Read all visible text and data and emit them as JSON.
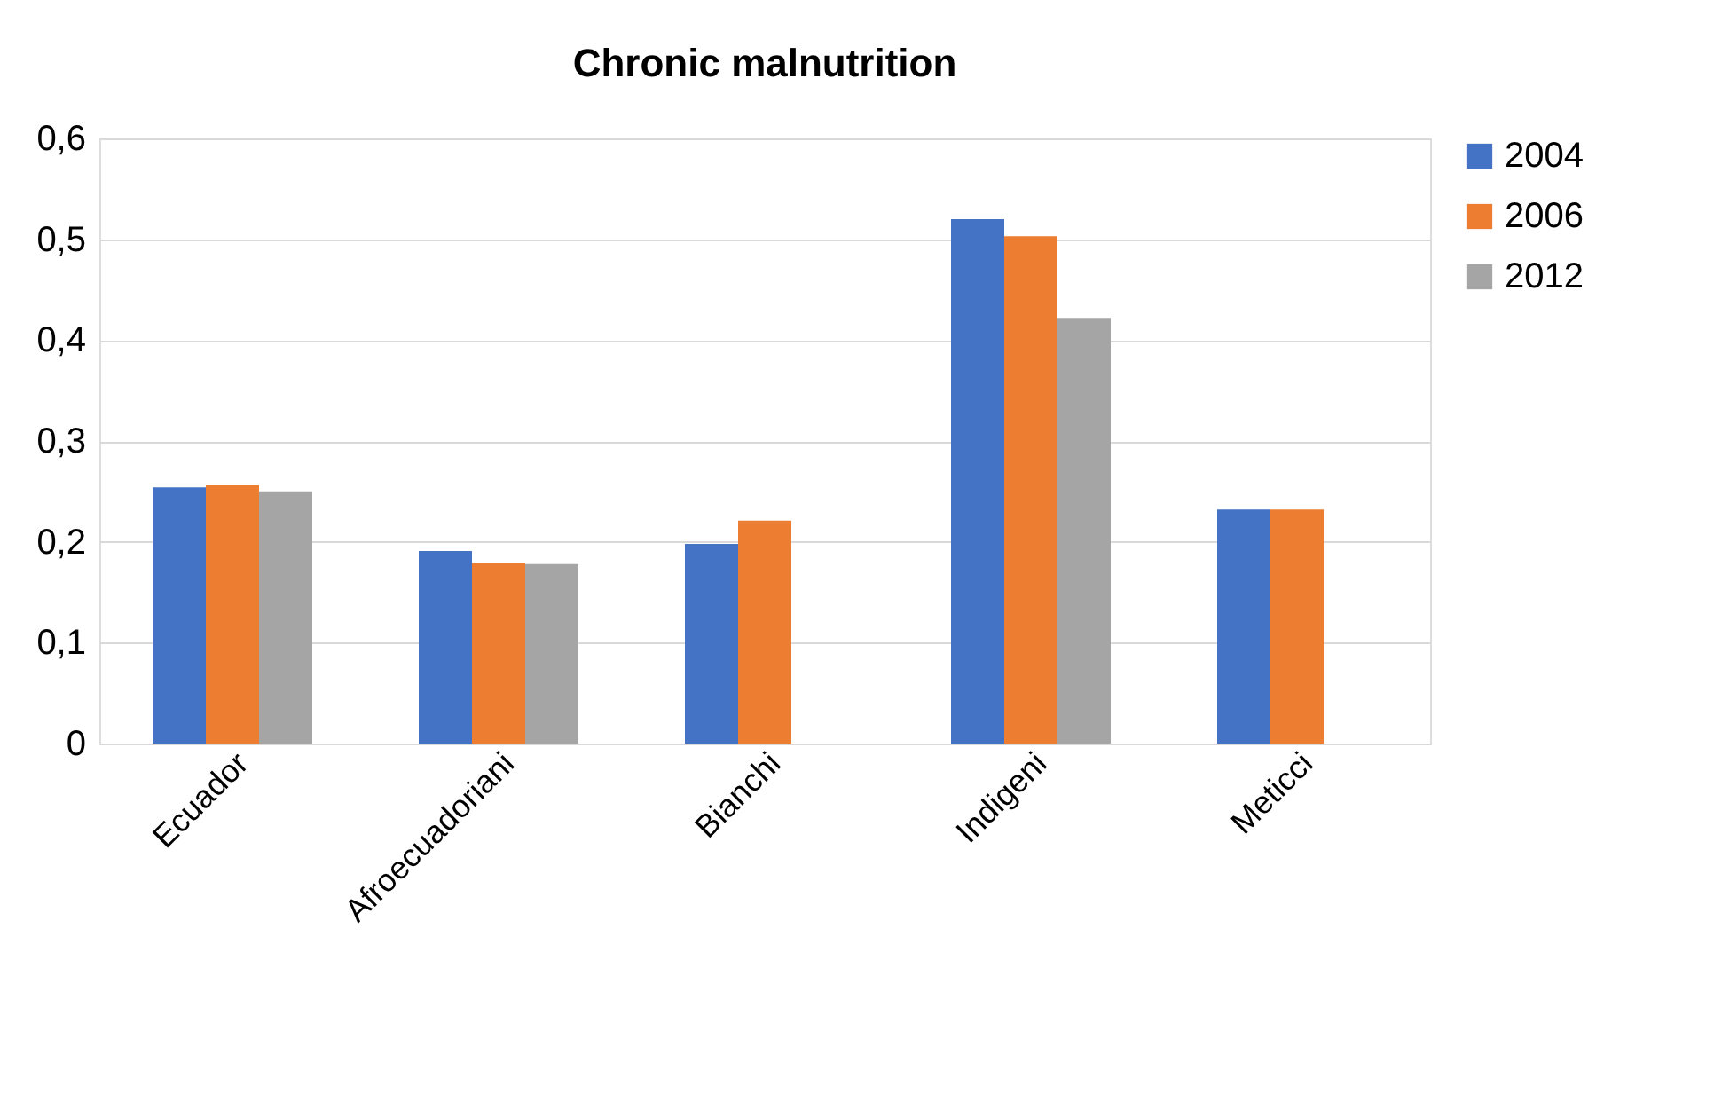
{
  "chart_data": {
    "type": "bar",
    "title": "Chronic malnutrition",
    "categories": [
      "Ecuador",
      "Afroecuadoriani",
      "Bianchi",
      "Indigeni",
      "Meticci"
    ],
    "series": [
      {
        "name": "2004",
        "color": "#4472c4",
        "values": [
          0.254,
          0.191,
          0.198,
          0.52,
          0.232
        ]
      },
      {
        "name": "2006",
        "color": "#ed7d31",
        "values": [
          0.256,
          0.179,
          0.221,
          0.503,
          0.232
        ]
      },
      {
        "name": "2012",
        "color": "#a5a5a5",
        "values": [
          0.25,
          0.178,
          null,
          0.422,
          null
        ]
      }
    ],
    "ylim": [
      0,
      0.6
    ],
    "yticks": [
      0,
      {
        "value": 0.1,
        "label": "0,1"
      },
      {
        "value": 0.2,
        "label": "0,2"
      },
      {
        "value": 0.3,
        "label": "0,3"
      },
      {
        "value": 0.4,
        "label": "0,4"
      },
      {
        "value": 0.5,
        "label": "0,5"
      },
      {
        "value": 0.6,
        "label": "0,6"
      }
    ],
    "grid": "y",
    "legend": "right"
  }
}
